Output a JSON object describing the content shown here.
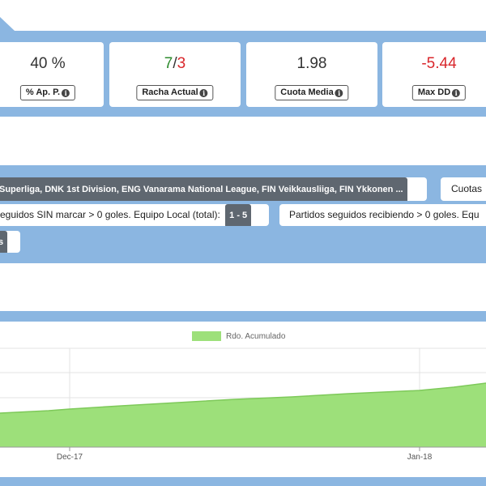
{
  "stats": [
    {
      "value": "40 %",
      "label": "% Ap. P."
    },
    {
      "value_win": "7",
      "value_sep": "/",
      "value_loss": "3",
      "label": "Racha Actual"
    },
    {
      "value": "1.98",
      "label": "Cuota Media"
    },
    {
      "value": "-5.44",
      "label": "Max DD"
    }
  ],
  "filters": {
    "leagues": "Superliga, DNK 1st Division, ENG Vanarama National League, FIN Veikkausliiga, FIN Ykkonen ...",
    "cuotas": "Cuotas",
    "local_label": "eguidos SIN marcar > 0 goles. Equipo Local (total):",
    "local_range": "1 - 5",
    "receiving_label": "Partidos seguidos recibiendo > 0 goles. Equ",
    "partial_tag": "s"
  },
  "chart": {
    "legend": "Rdo. Acumulado",
    "series_color": "#9de07a",
    "series_stroke": "#7ec95a"
  },
  "chart_data": {
    "type": "area",
    "series": [
      {
        "name": "Rdo. Acumulado"
      }
    ],
    "x_ticks": [
      "Dec-17",
      "Jan-18"
    ],
    "grid": true,
    "legend_position": "top"
  }
}
